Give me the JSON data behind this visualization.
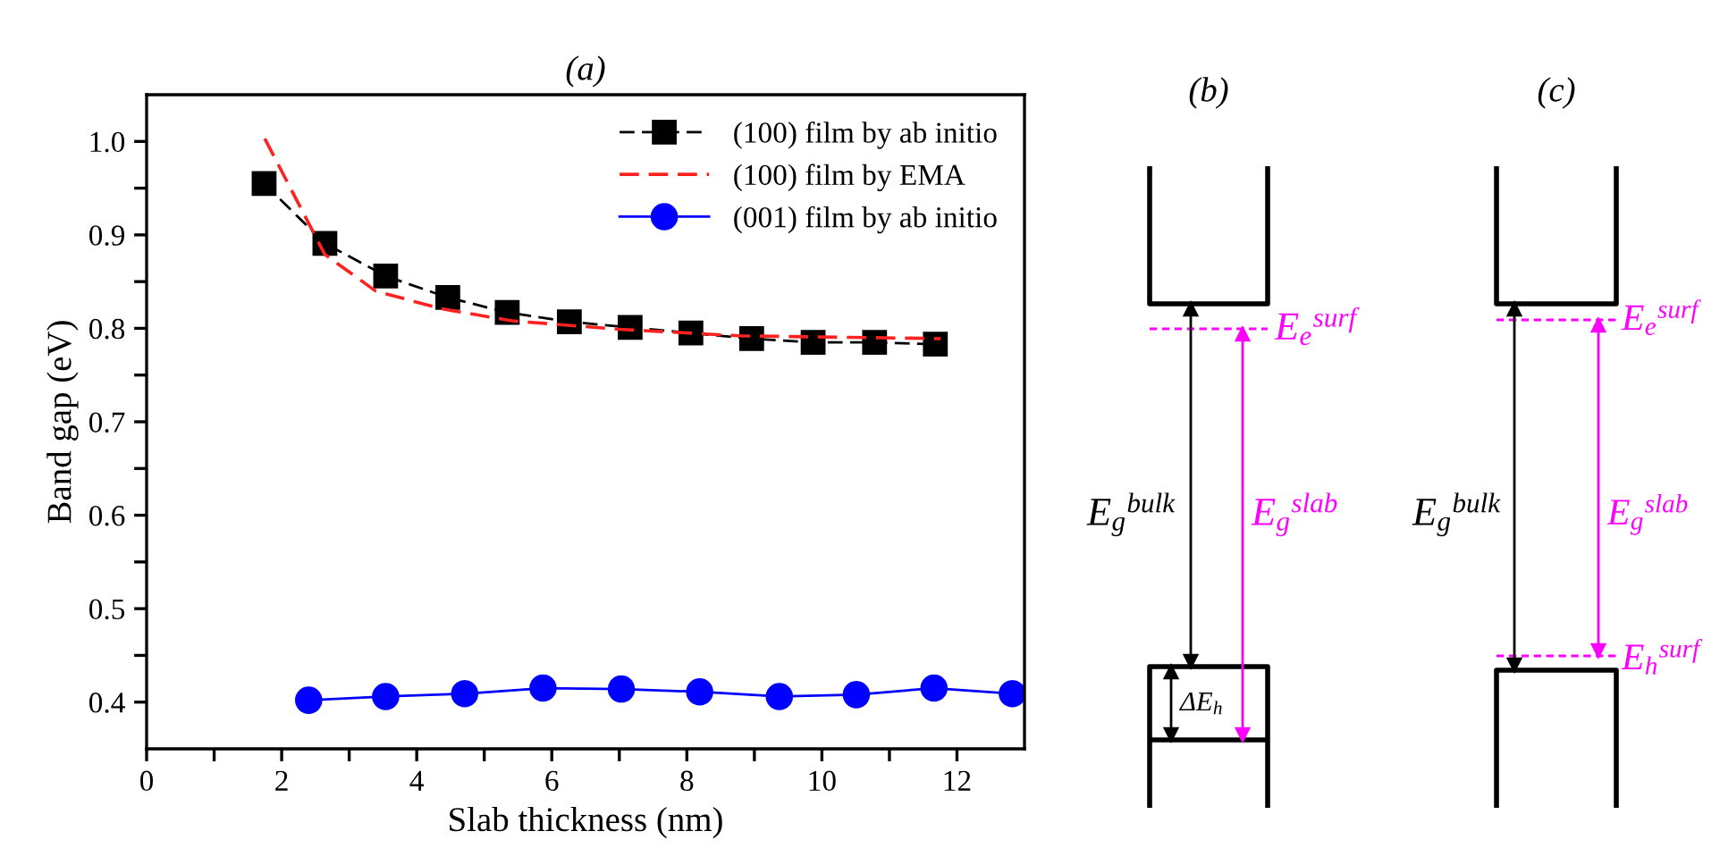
{
  "chart_data": [
    {
      "type": "line",
      "title": "(a)",
      "xlabel": "Slab thickness (nm)",
      "ylabel": "Band gap (eV)",
      "xlim": [
        0,
        13
      ],
      "xticks": [
        0,
        {
          "value": 1,
          "label": null
        },
        2,
        {
          "value": 3,
          "label": null
        },
        4,
        {
          "value": 5,
          "label": null
        },
        6,
        {
          "value": 7,
          "label": null
        },
        8,
        {
          "value": 9,
          "label": null
        },
        10,
        {
          "value": 11,
          "label": null
        },
        12
      ],
      "ylim": [
        0.35,
        1.05
      ],
      "yticks": [
        {
          "value": 0.4,
          "label": "0.4"
        },
        {
          "value": 0.45,
          "label": null
        },
        {
          "value": 0.5,
          "label": "0.5"
        },
        {
          "value": 0.55,
          "label": null
        },
        {
          "value": 0.6,
          "label": "0.6"
        },
        {
          "value": 0.65,
          "label": null
        },
        {
          "value": 0.7,
          "label": "0.7"
        },
        {
          "value": 0.75,
          "label": null
        },
        {
          "value": 0.8,
          "label": "0.8"
        },
        {
          "value": 0.85,
          "label": null
        },
        {
          "value": 0.9,
          "label": "0.9"
        },
        {
          "value": 0.95,
          "label": null
        },
        {
          "value": 1.0,
          "label": "1.0"
        }
      ],
      "grid": false,
      "legend": "top right",
      "series": [
        {
          "name": "(100) film by ab initio",
          "color": "#000000",
          "marker": "square",
          "line_style": "dashed",
          "x": [
            1.74,
            2.64,
            3.54,
            4.46,
            5.34,
            6.26,
            7.16,
            8.06,
            8.96,
            9.87,
            10.78,
            11.68
          ],
          "values": [
            0.955,
            0.891,
            0.856,
            0.833,
            0.817,
            0.807,
            0.801,
            0.795,
            0.789,
            0.785,
            0.785,
            0.783
          ]
        },
        {
          "name": "(100) film by EMA",
          "color": "#ff2020",
          "marker": "none",
          "line_style": "dashed",
          "x": [
            1.75,
            2.64,
            3.39,
            4.36,
            5.41,
            7.0,
            8.77,
            11.76
          ],
          "values": [
            1.003,
            0.879,
            0.84,
            0.821,
            0.808,
            0.799,
            0.792,
            0.789
          ]
        },
        {
          "name": "(001) film by ab initio",
          "color": "#0000ff",
          "marker": "circle",
          "line_style": "solid",
          "x": [
            2.4,
            3.54,
            4.71,
            5.87,
            7.03,
            8.19,
            9.37,
            10.51,
            11.66,
            12.82
          ],
          "values": [
            0.402,
            0.406,
            0.409,
            0.415,
            0.414,
            0.411,
            0.406,
            0.408,
            0.415,
            0.409
          ]
        }
      ]
    },
    {
      "type": "other",
      "title": "(b)",
      "annotations": [
        "E$_{e}$$^{surf}$",
        "E$_{g}$$^{bulk}$",
        "E$_{g}$$^{slab}$",
        "ΔE$_{h}$"
      ]
    },
    {
      "type": "other",
      "title": "(c)",
      "annotations": [
        "E$_{e}$$^{surf}$",
        "E$_{g}$$^{bulk}$",
        "E$_{g}$$^{slab}$",
        "E$_{h}$$^{surf}$"
      ]
    }
  ]
}
